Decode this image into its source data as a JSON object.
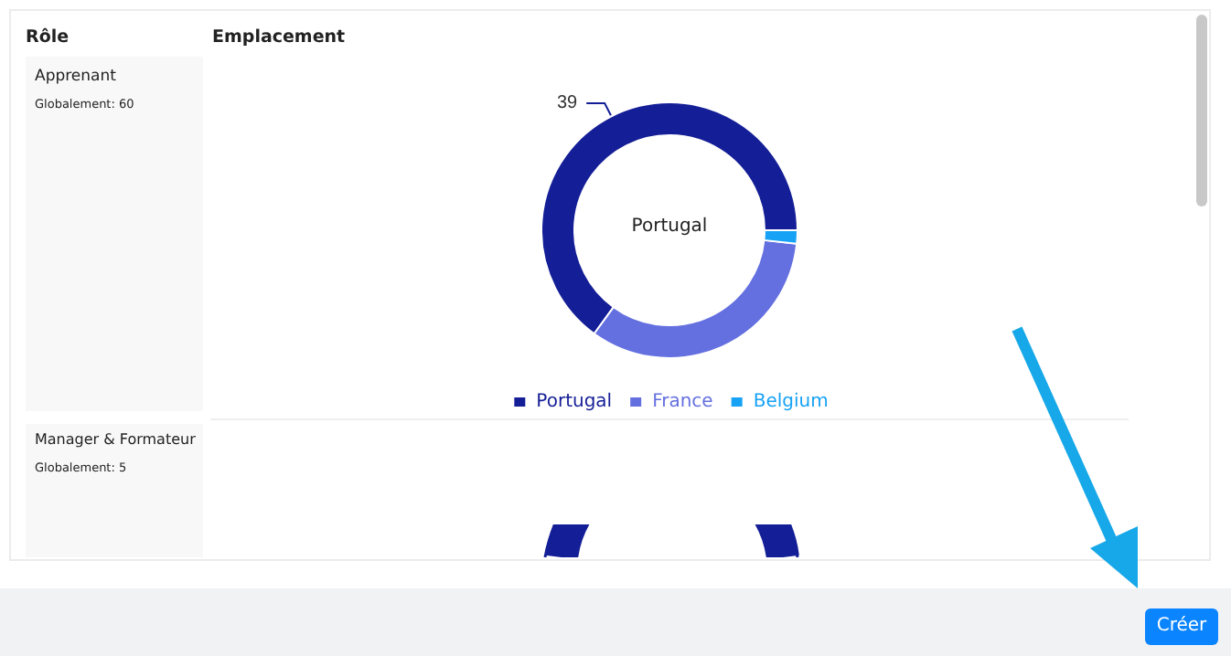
{
  "chart_data": {
    "type": "donut",
    "title": "Emplacement",
    "categories": [
      "Portugal",
      "France",
      "Belgium"
    ],
    "values": [
      39,
      20,
      1
    ],
    "colors": [
      "#141e96",
      "#6470e0",
      "#17a2f5"
    ],
    "value_labels": [
      "39",
      null,
      null
    ],
    "legend": "bottom",
    "annotations": [
      "Portugal",
      "Rôle",
      "Apprenant",
      "Globalement: 60",
      "Manager & Formateur",
      "Globalement: 5",
      "Créer"
    ]
  }
}
